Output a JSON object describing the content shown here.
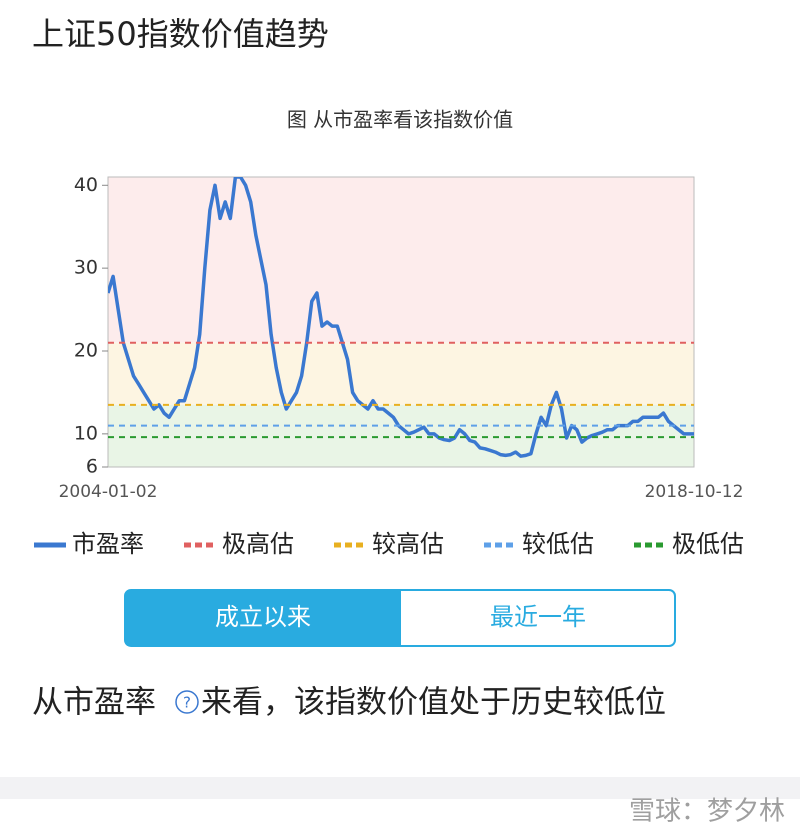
{
  "header": {
    "title": "上证50指数价值趋势"
  },
  "chart_data": {
    "type": "line",
    "title": "图 从市盈率看该指数价值",
    "categories": [
      "2004-01-02",
      null,
      null,
      null,
      null,
      null,
      null,
      null,
      null,
      null,
      null,
      null,
      null,
      null,
      null,
      null,
      null,
      null,
      null,
      null,
      null,
      null,
      null,
      null,
      null,
      null,
      null,
      null,
      null,
      null,
      null,
      null,
      null,
      null,
      null,
      null,
      null,
      null,
      null,
      null,
      null,
      null,
      null,
      null,
      null,
      null,
      null,
      null,
      null,
      null,
      null,
      null,
      null,
      null,
      null,
      null,
      null,
      null,
      null,
      null,
      null,
      null,
      null,
      null,
      null,
      null,
      null,
      null,
      null,
      null,
      null,
      null,
      null,
      null,
      null,
      null,
      null,
      null,
      null,
      null,
      null,
      null,
      null,
      null,
      null,
      null,
      null,
      null,
      null,
      null,
      null,
      null,
      null,
      null,
      null,
      null,
      null,
      null,
      null,
      null,
      null,
      null,
      null,
      null,
      null,
      null,
      null,
      null,
      null,
      null,
      null,
      null,
      null,
      null,
      null,
      "2018-10-12"
    ],
    "series": [
      {
        "name": "市盈率",
        "color": "#3a78d0",
        "values": [
          27,
          29,
          25,
          21,
          19,
          17,
          16,
          15,
          14,
          13,
          13.5,
          12.5,
          12,
          13,
          14,
          14,
          16,
          18,
          22,
          30,
          37,
          40,
          36,
          38,
          36,
          41,
          41,
          40,
          38,
          34,
          31,
          28,
          22,
          18,
          15,
          13,
          14,
          15,
          17,
          21,
          26,
          27,
          23,
          23.5,
          23,
          23,
          21,
          19,
          15,
          14,
          13.5,
          13,
          14,
          13,
          13,
          12.5,
          12,
          11,
          10.5,
          10,
          10.2,
          10.5,
          10.8,
          10,
          10,
          9.5,
          9.3,
          9.2,
          9.5,
          10.5,
          10,
          9.2,
          9,
          8.3,
          8.2,
          8,
          7.8,
          7.5,
          7.4,
          7.5,
          7.8,
          7.3,
          7.4,
          7.6,
          10,
          12,
          11,
          13.5,
          15,
          13,
          9.5,
          11,
          10.5,
          9,
          9.5,
          9.8,
          10,
          10.2,
          10.5,
          10.5,
          11,
          11,
          11,
          11.5,
          11.5,
          12,
          12,
          12,
          12,
          12.5,
          11.5,
          11,
          10.5,
          10,
          10,
          10
        ]
      },
      {
        "name": "极高估",
        "color": "#e06060",
        "value": 21,
        "dashed": true
      },
      {
        "name": "较高估",
        "color": "#e8b020",
        "value": 13.5,
        "dashed": true
      },
      {
        "name": "较低估",
        "color": "#5ea0e8",
        "value": 11,
        "dashed": true
      },
      {
        "name": "极低估",
        "color": "#2a9a30",
        "value": 9.6,
        "dashed": true
      }
    ],
    "ylim": [
      6,
      41
    ],
    "yticks": [
      6,
      10,
      20,
      30,
      40
    ]
  },
  "tabs": [
    "成立以来",
    "最近一年"
  ],
  "conclusion": {
    "before": "从市盈率",
    "after": "来看，该指数价值处于历史较低位"
  },
  "watermark": "雪球：梦夕林"
}
